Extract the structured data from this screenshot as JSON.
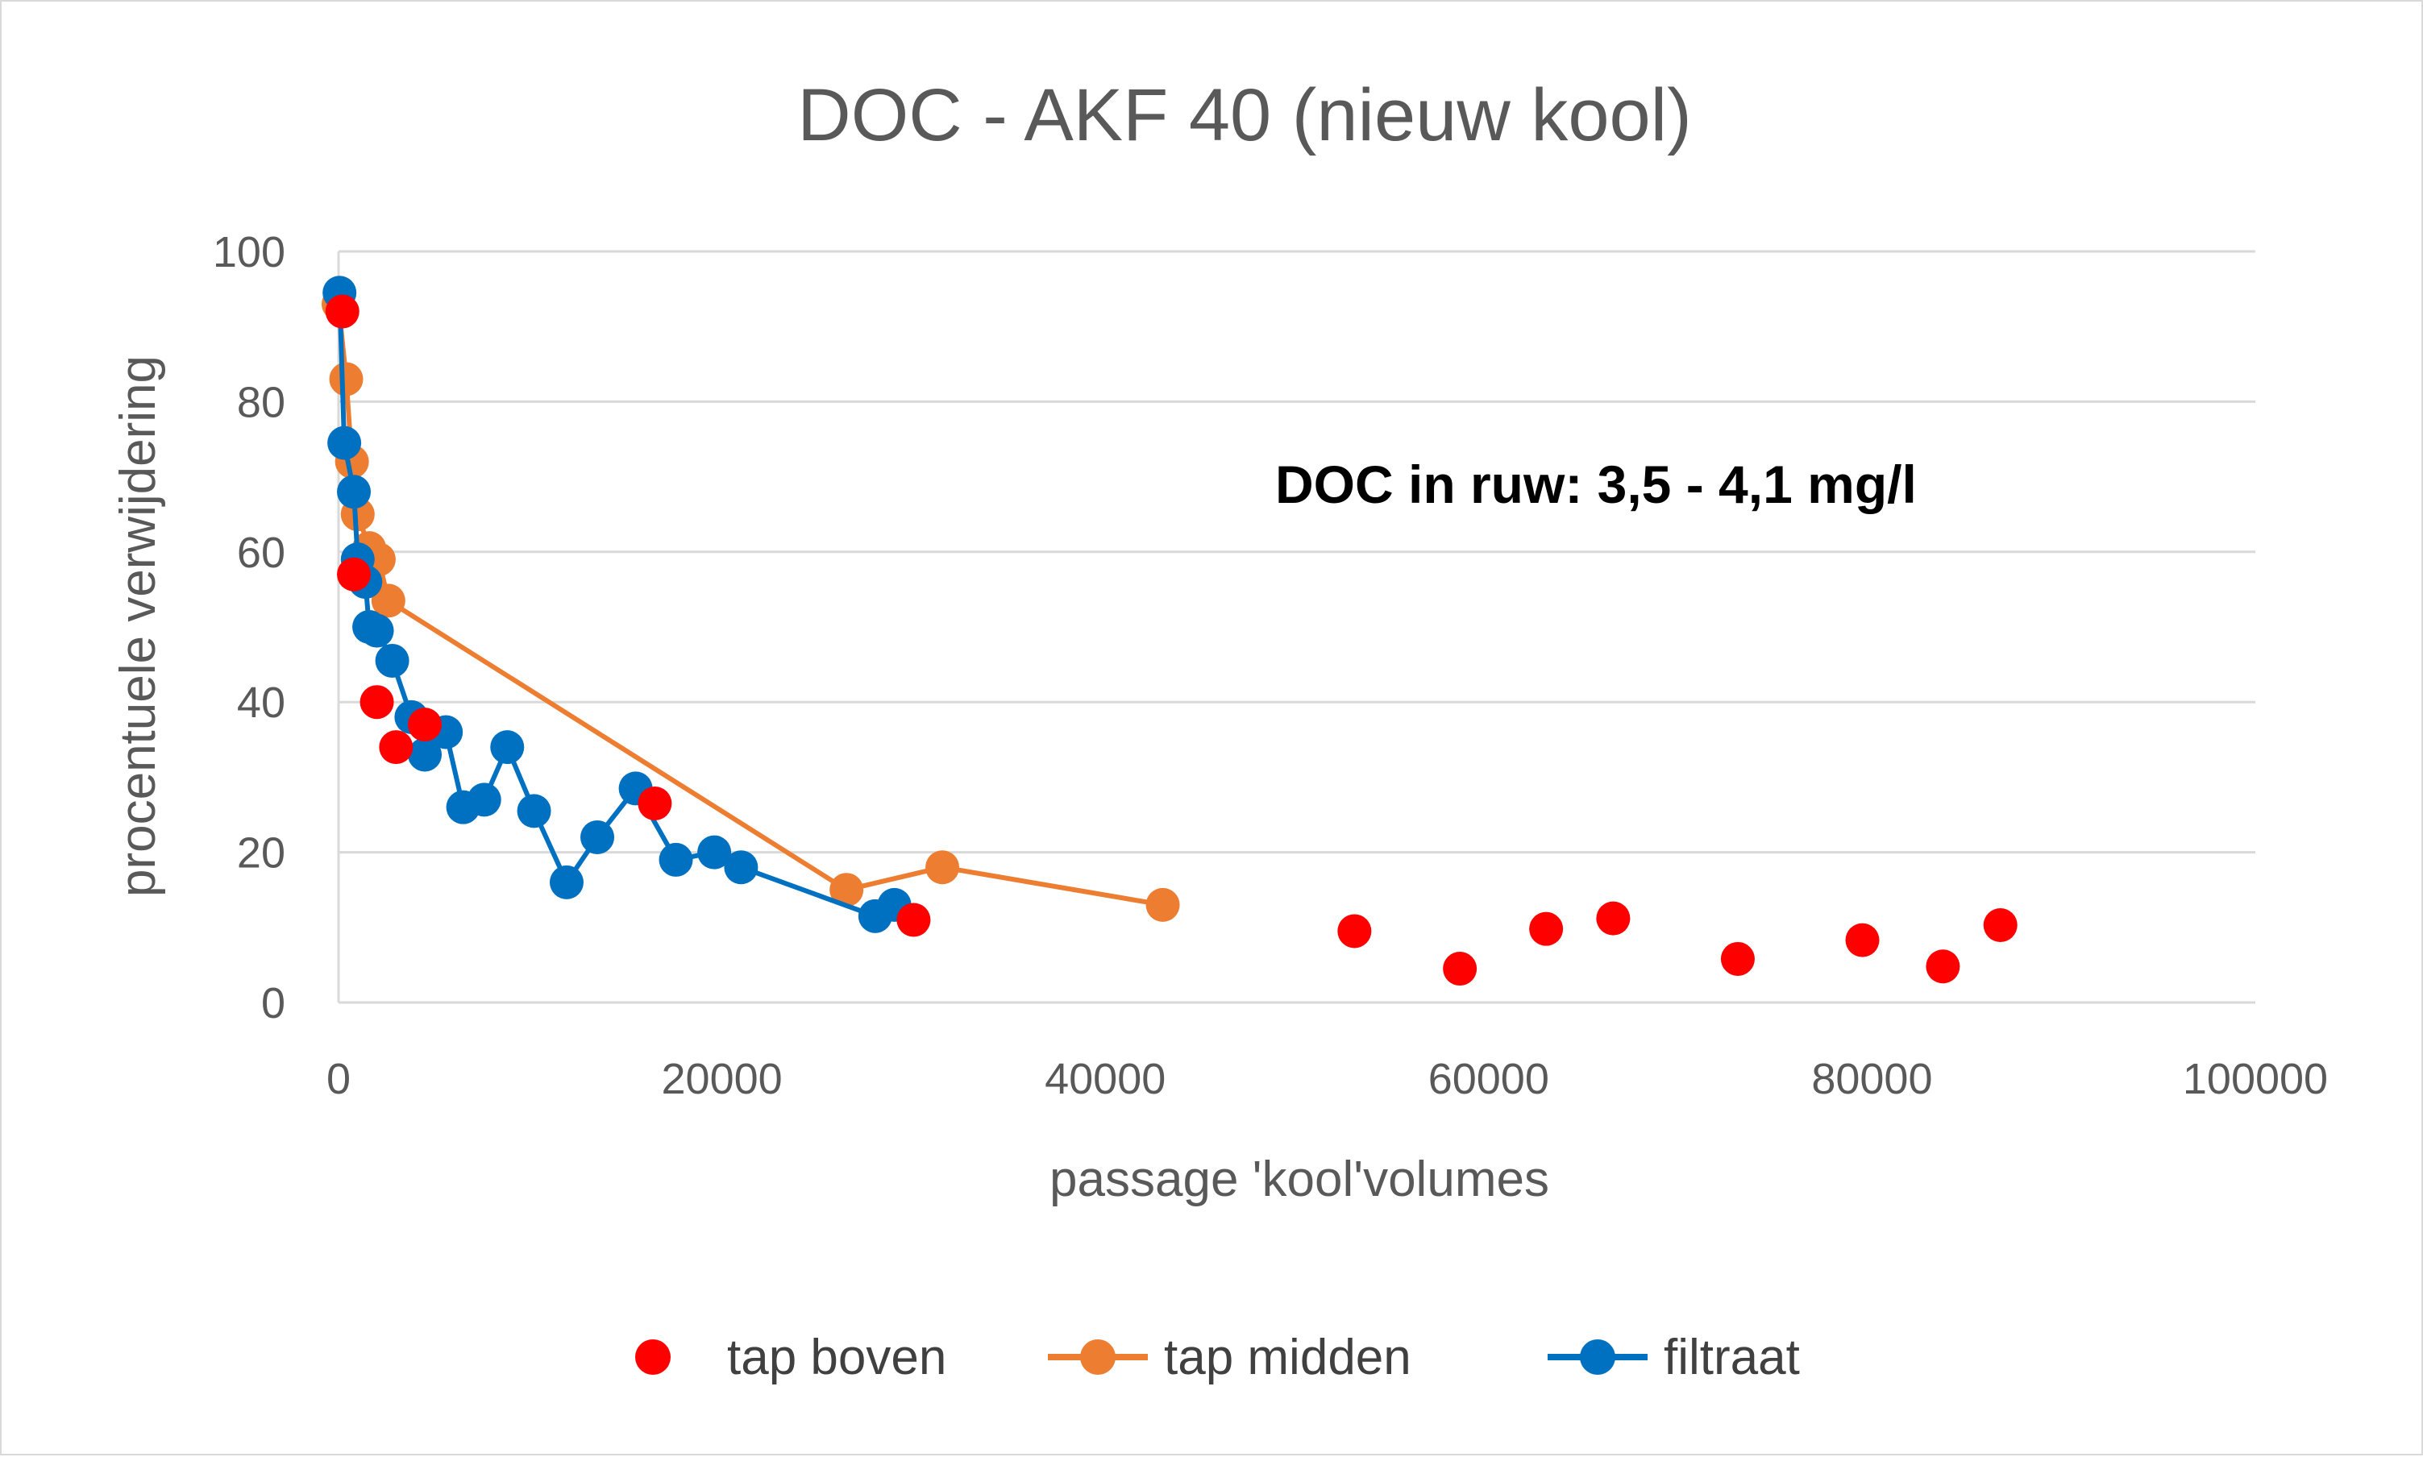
{
  "chart_data": {
    "type": "scatter",
    "title": "DOC - AKF 40 (nieuw kool)",
    "xlabel": "passage 'kool'volumes",
    "ylabel": "procentuele verwijdering",
    "xlim": [
      0,
      100000
    ],
    "ylim": [
      0,
      100
    ],
    "x_ticks": [
      "0",
      "20000",
      "40000",
      "60000",
      "80000",
      "100000"
    ],
    "y_ticks": [
      "0",
      "20",
      "40",
      "60",
      "80",
      "100"
    ],
    "grid": "horizontal",
    "legend_position": "bottom",
    "annotation": "DOC in ruw: 3,5 - 4,1 mg/l",
    "series": [
      {
        "name": "tap boven",
        "color": "#FF0000",
        "style": "markers",
        "points": [
          [
            200,
            92
          ],
          [
            800,
            57
          ],
          [
            2000,
            40
          ],
          [
            3000,
            34
          ],
          [
            4500,
            37
          ],
          [
            16500,
            26.5
          ],
          [
            30000,
            11
          ],
          [
            53000,
            9.5
          ],
          [
            58500,
            4.5
          ],
          [
            63000,
            9.8
          ],
          [
            66500,
            11.2
          ],
          [
            73000,
            5.8
          ],
          [
            79500,
            8.3
          ],
          [
            83700,
            4.8
          ],
          [
            86700,
            10.3
          ]
        ]
      },
      {
        "name": "tap midden",
        "color": "#ED7D31",
        "style": "line-markers",
        "points": [
          [
            0,
            93
          ],
          [
            400,
            83
          ],
          [
            700,
            72
          ],
          [
            1000,
            65
          ],
          [
            1600,
            60.5
          ],
          [
            2100,
            59
          ],
          [
            2600,
            53.5
          ],
          [
            26500,
            15
          ],
          [
            31500,
            18
          ],
          [
            43000,
            13
          ]
        ]
      },
      {
        "name": "filtraat",
        "color": "#0070C0",
        "style": "line-markers",
        "points": [
          [
            50,
            94.5
          ],
          [
            300,
            74.5
          ],
          [
            800,
            68
          ],
          [
            1000,
            59
          ],
          [
            1400,
            56
          ],
          [
            1600,
            50
          ],
          [
            2000,
            49.5
          ],
          [
            2800,
            45.5
          ],
          [
            3800,
            38
          ],
          [
            4500,
            33
          ],
          [
            5600,
            36
          ],
          [
            6500,
            26
          ],
          [
            7600,
            27
          ],
          [
            8800,
            34
          ],
          [
            10200,
            25.5
          ],
          [
            11900,
            16
          ],
          [
            13500,
            22
          ],
          [
            15500,
            28.5
          ],
          [
            17600,
            19
          ],
          [
            19600,
            20
          ],
          [
            21000,
            18
          ],
          [
            28000,
            11.5
          ],
          [
            29000,
            13
          ]
        ]
      }
    ]
  }
}
